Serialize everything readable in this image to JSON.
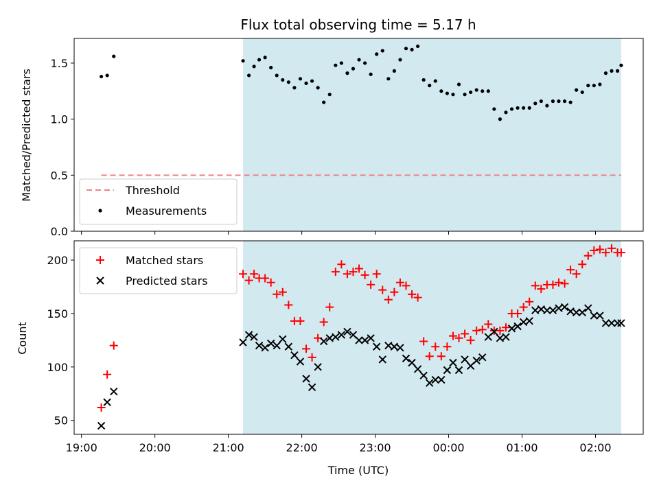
{
  "chart_data": [
    {
      "type": "scatter",
      "title": "Flux total observing time = 5.17 h",
      "ylabel": "Matched/Predicted stars",
      "ylim": [
        0,
        1.72
      ],
      "yticks": [
        0.0,
        0.5,
        1.0,
        1.5
      ],
      "ytick_labels": [
        "0.0",
        "0.5",
        "1.0",
        "1.5"
      ],
      "xlim_hours": [
        18.9,
        26.65
      ],
      "grid": false,
      "legend_position": "lower-left",
      "highlight_span_hours": [
        21.2,
        26.35
      ],
      "highlight_color": "#add8e6",
      "threshold": {
        "name": "Threshold",
        "value": 0.5,
        "x_range_hours": [
          19.27,
          26.35
        ],
        "color": "#f08080",
        "style": "dashed"
      },
      "series": [
        {
          "name": "Measurements",
          "color": "#000000",
          "marker": "dot",
          "x": [
            19.27,
            19.35,
            19.44,
            21.2,
            21.28,
            21.35,
            21.42,
            21.5,
            21.58,
            21.66,
            21.74,
            21.82,
            21.9,
            21.98,
            22.06,
            22.14,
            22.22,
            22.3,
            22.38,
            22.46,
            22.54,
            22.62,
            22.7,
            22.78,
            22.86,
            22.94,
            23.02,
            23.1,
            23.18,
            23.26,
            23.34,
            23.42,
            23.5,
            23.58,
            23.66,
            23.74,
            23.82,
            23.9,
            23.98,
            24.06,
            24.14,
            24.22,
            24.3,
            24.38,
            24.46,
            24.54,
            24.62,
            24.7,
            24.78,
            24.86,
            24.94,
            25.02,
            25.1,
            25.18,
            25.26,
            25.34,
            25.42,
            25.5,
            25.58,
            25.66,
            25.74,
            25.82,
            25.9,
            25.98,
            26.06,
            26.14,
            26.22,
            26.3,
            26.35
          ],
          "y": [
            1.38,
            1.39,
            1.56,
            1.52,
            1.39,
            1.47,
            1.53,
            1.55,
            1.46,
            1.39,
            1.35,
            1.33,
            1.28,
            1.36,
            1.32,
            1.34,
            1.28,
            1.15,
            1.22,
            1.48,
            1.5,
            1.41,
            1.45,
            1.53,
            1.5,
            1.4,
            1.58,
            1.61,
            1.36,
            1.43,
            1.53,
            1.63,
            1.62,
            1.65,
            1.35,
            1.3,
            1.34,
            1.25,
            1.23,
            1.22,
            1.31,
            1.22,
            1.24,
            1.26,
            1.25,
            1.25,
            1.09,
            1.0,
            1.06,
            1.09,
            1.1,
            1.1,
            1.1,
            1.14,
            1.16,
            1.12,
            1.16,
            1.16,
            1.16,
            1.15,
            1.26,
            1.24,
            1.3,
            1.3,
            1.31,
            1.41,
            1.43,
            1.43,
            1.48
          ]
        }
      ]
    },
    {
      "type": "scatter",
      "xlabel": "Time (UTC)",
      "ylabel": "Count",
      "ylim": [
        37,
        218
      ],
      "yticks": [
        50,
        100,
        150,
        200
      ],
      "ytick_labels": [
        "50",
        "100",
        "150",
        "200"
      ],
      "xlim_hours": [
        18.9,
        26.65
      ],
      "xticks_hours": [
        19,
        20,
        21,
        22,
        23,
        24,
        25,
        26
      ],
      "xtick_labels": [
        "19:00",
        "20:00",
        "21:00",
        "22:00",
        "23:00",
        "00:00",
        "01:00",
        "02:00"
      ],
      "grid": false,
      "legend_position": "upper-left",
      "highlight_span_hours": [
        21.2,
        26.35
      ],
      "highlight_color": "#add8e6",
      "series": [
        {
          "name": "Matched stars",
          "color": "#ff0000",
          "marker": "plus",
          "x": [
            19.27,
            19.35,
            19.44,
            21.2,
            21.28,
            21.35,
            21.42,
            21.5,
            21.58,
            21.66,
            21.74,
            21.82,
            21.9,
            21.98,
            22.06,
            22.14,
            22.22,
            22.3,
            22.38,
            22.46,
            22.54,
            22.62,
            22.7,
            22.78,
            22.86,
            22.94,
            23.02,
            23.1,
            23.18,
            23.26,
            23.34,
            23.42,
            23.5,
            23.58,
            23.66,
            23.74,
            23.82,
            23.9,
            23.98,
            24.06,
            24.14,
            24.22,
            24.3,
            24.38,
            24.46,
            24.54,
            24.62,
            24.7,
            24.78,
            24.86,
            24.94,
            25.02,
            25.1,
            25.18,
            25.26,
            25.34,
            25.42,
            25.5,
            25.58,
            25.66,
            25.74,
            25.82,
            25.9,
            25.98,
            26.06,
            26.14,
            26.22,
            26.3,
            26.35
          ],
          "y": [
            62,
            93,
            120,
            187,
            181,
            187,
            183,
            183,
            179,
            168,
            170,
            158,
            143,
            143,
            117,
            109,
            127,
            142,
            156,
            189,
            196,
            187,
            189,
            192,
            186,
            177,
            187,
            172,
            163,
            170,
            179,
            176,
            168,
            165,
            124,
            110,
            119,
            110,
            119,
            129,
            127,
            131,
            125,
            134,
            135,
            140,
            134,
            134,
            137,
            150,
            150,
            156,
            161,
            176,
            173,
            177,
            177,
            179,
            178,
            191,
            187,
            196,
            204,
            209,
            210,
            207,
            211,
            207,
            207
          ]
        },
        {
          "name": "Predicted stars",
          "color": "#000000",
          "marker": "x",
          "x": [
            19.27,
            19.35,
            19.44,
            21.2,
            21.28,
            21.35,
            21.42,
            21.5,
            21.58,
            21.66,
            21.74,
            21.82,
            21.9,
            21.98,
            22.06,
            22.14,
            22.22,
            22.3,
            22.38,
            22.46,
            22.54,
            22.62,
            22.7,
            22.78,
            22.86,
            22.94,
            23.02,
            23.1,
            23.18,
            23.26,
            23.34,
            23.42,
            23.5,
            23.58,
            23.66,
            23.74,
            23.82,
            23.9,
            23.98,
            24.06,
            24.14,
            24.22,
            24.3,
            24.38,
            24.46,
            24.54,
            24.62,
            24.7,
            24.78,
            24.86,
            24.94,
            25.02,
            25.1,
            25.18,
            25.26,
            25.34,
            25.42,
            25.5,
            25.58,
            25.66,
            25.74,
            25.82,
            25.9,
            25.98,
            26.06,
            26.14,
            26.22,
            26.3,
            26.35
          ],
          "y": [
            45,
            67,
            77,
            123,
            130,
            128,
            120,
            118,
            122,
            120,
            126,
            119,
            111,
            105,
            89,
            81,
            100,
            124,
            127,
            128,
            130,
            133,
            130,
            125,
            125,
            127,
            119,
            107,
            120,
            119,
            118,
            108,
            104,
            98,
            92,
            85,
            88,
            88,
            97,
            104,
            97,
            107,
            101,
            106,
            109,
            128,
            133,
            127,
            128,
            136,
            138,
            142,
            143,
            153,
            154,
            153,
            153,
            155,
            156,
            152,
            151,
            151,
            155,
            148,
            148,
            141,
            141,
            141,
            141
          ]
        }
      ]
    }
  ]
}
